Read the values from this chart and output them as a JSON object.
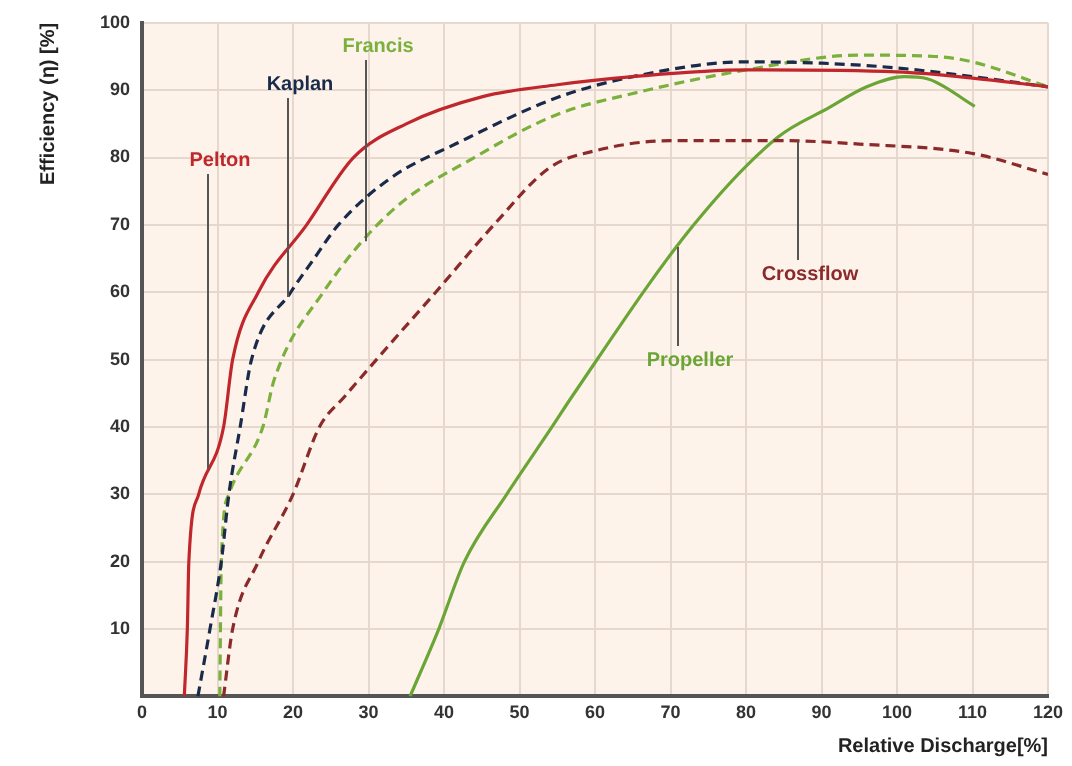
{
  "chart_data": {
    "type": "line",
    "xlabel": "Relative Discharge[%]",
    "ylabel": "Efficiency (η) [%]",
    "xlim": [
      0,
      120
    ],
    "xticks": [
      0,
      10,
      20,
      30,
      40,
      50,
      60,
      70,
      80,
      90,
      100,
      110,
      120
    ],
    "ylim": [
      0,
      100
    ],
    "yticks": [
      10,
      20,
      30,
      40,
      50,
      60,
      70,
      80,
      90,
      100
    ],
    "grid": true,
    "legend": false,
    "marker": "none",
    "series": [
      {
        "name": "Pelton",
        "color": "#c0272d",
        "line_style": "solid",
        "x": [
          5.6,
          6.0,
          6.2,
          7.5,
          10.8,
          12,
          15.4,
          21.8,
          28,
          35,
          45,
          55,
          65,
          80,
          100,
          110,
          120
        ],
        "values": [
          0,
          10,
          20,
          30,
          40,
          50,
          60,
          70,
          80,
          85,
          89,
          90.8,
          92,
          93,
          92.7,
          91.8,
          90.5
        ]
      },
      {
        "name": "Kaplan",
        "color": "#1a2a4a",
        "line_style": "dashed",
        "x": [
          7.4,
          9,
          10.5,
          11.5,
          13,
          14.5,
          19.7,
          22.8,
          26,
          33,
          41.5,
          55,
          65,
          80,
          90,
          100,
          110,
          120
        ],
        "values": [
          0,
          10,
          20,
          30,
          40,
          50,
          60,
          65,
          70,
          77,
          82,
          88.9,
          92,
          94.2,
          94,
          93.3,
          92,
          90.5
        ]
      },
      {
        "name": "Francis",
        "color": "#7ab03c",
        "line_style": "dashed",
        "x": [
          10.3,
          10.5,
          11.5,
          16,
          17.5,
          24,
          33,
          44,
          55,
          65,
          80,
          95,
          105,
          110,
          120
        ],
        "values": [
          0,
          20,
          30,
          40,
          47,
          60,
          72,
          80,
          86.4,
          89.5,
          93,
          95.2,
          95,
          94.2,
          90.5
        ]
      },
      {
        "name": "Crossflow",
        "color": "#8b2a2a",
        "line_style": "dashed",
        "x": [
          10.8,
          12,
          15.4,
          20,
          23.5,
          26.9,
          33,
          38.9,
          46.6,
          54,
          60,
          70,
          85,
          95,
          110,
          120
        ],
        "values": [
          0,
          10,
          20,
          30,
          40,
          44.6,
          52.5,
          60,
          70,
          78.5,
          81,
          82.5,
          82.5,
          82,
          80.6,
          77.5
        ]
      },
      {
        "name": "Propeller",
        "color": "#6aa536",
        "line_style": "solid",
        "x": [
          35.5,
          39.3,
          42.7,
          48.3,
          54.3,
          57,
          73,
          84.2,
          91,
          96,
          101,
          104,
          110.3
        ],
        "values": [
          0,
          10,
          20,
          30,
          40,
          44.6,
          69.9,
          83,
          87.4,
          90.5,
          92,
          91.7,
          87.6
        ]
      }
    ]
  }
}
